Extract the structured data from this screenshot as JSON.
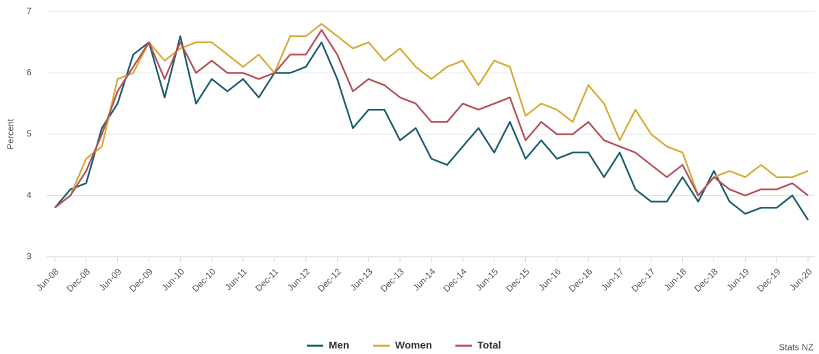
{
  "chart_data": {
    "type": "line",
    "y_label": "Percent",
    "source": "Stats NZ",
    "categories": [
      "Jun-08",
      null,
      "Dec-08",
      null,
      "Jun-09",
      null,
      "Dec-09",
      null,
      "Jun-10",
      null,
      "Dec-10",
      null,
      "Jun-11",
      null,
      "Dec-11",
      null,
      "Jun-12",
      null,
      "Dec-12",
      null,
      "Jun-13",
      null,
      "Dec-13",
      null,
      "Jun-14",
      null,
      "Dec-14",
      null,
      "Jun-15",
      null,
      "Dec-15",
      null,
      "Jun-16",
      null,
      "Dec-16",
      null,
      "Jun-17",
      null,
      "Dec-17",
      null,
      "Jun-18",
      null,
      "Dec-18",
      null,
      "Jun-19",
      null,
      "Dec-19",
      null,
      "Jun-20"
    ],
    "series": [
      {
        "name": "Men",
        "color": "#1d5f6e",
        "values": [
          3.8,
          4.1,
          4.2,
          5.1,
          5.5,
          6.3,
          6.5,
          5.6,
          6.6,
          5.5,
          5.9,
          5.7,
          5.9,
          5.6,
          6.0,
          6.0,
          6.1,
          6.5,
          5.9,
          5.1,
          5.4,
          5.4,
          4.9,
          5.1,
          4.6,
          4.5,
          4.8,
          5.1,
          4.7,
          5.2,
          4.6,
          4.9,
          4.6,
          4.7,
          4.7,
          4.3,
          4.7,
          4.1,
          3.9,
          3.9,
          4.3,
          3.9,
          4.4,
          3.9,
          3.7,
          3.8,
          3.8,
          4.0,
          3.6
        ]
      },
      {
        "name": "Women",
        "color": "#d4ad3a",
        "values": [
          3.8,
          4.0,
          4.6,
          4.8,
          5.9,
          6.0,
          6.5,
          6.2,
          6.4,
          6.5,
          6.5,
          6.3,
          6.1,
          6.3,
          6.0,
          6.6,
          6.6,
          6.8,
          6.6,
          6.4,
          6.5,
          6.2,
          6.4,
          6.1,
          5.9,
          6.1,
          6.2,
          5.8,
          6.2,
          6.1,
          5.3,
          5.5,
          5.4,
          5.2,
          5.8,
          5.5,
          4.9,
          5.4,
          5.0,
          4.8,
          4.7,
          4.0,
          4.3,
          4.4,
          4.3,
          4.5,
          4.3,
          4.3,
          4.4
        ]
      },
      {
        "name": "Total",
        "color": "#b5525a",
        "values": [
          3.8,
          4.0,
          4.4,
          5.0,
          5.7,
          6.1,
          6.5,
          5.9,
          6.5,
          6.0,
          6.2,
          6.0,
          6.0,
          5.9,
          6.0,
          6.3,
          6.3,
          6.7,
          6.3,
          5.7,
          5.9,
          5.8,
          5.6,
          5.5,
          5.2,
          5.2,
          5.5,
          5.4,
          5.5,
          5.6,
          4.9,
          5.2,
          5.0,
          5.0,
          5.2,
          4.9,
          4.8,
          4.7,
          4.5,
          4.3,
          4.5,
          4.0,
          4.3,
          4.1,
          4.0,
          4.1,
          4.1,
          4.2,
          4.0
        ]
      }
    ],
    "ylim": [
      3,
      7
    ],
    "yticks": [
      3,
      4,
      5,
      6,
      7
    ],
    "grid": true
  }
}
